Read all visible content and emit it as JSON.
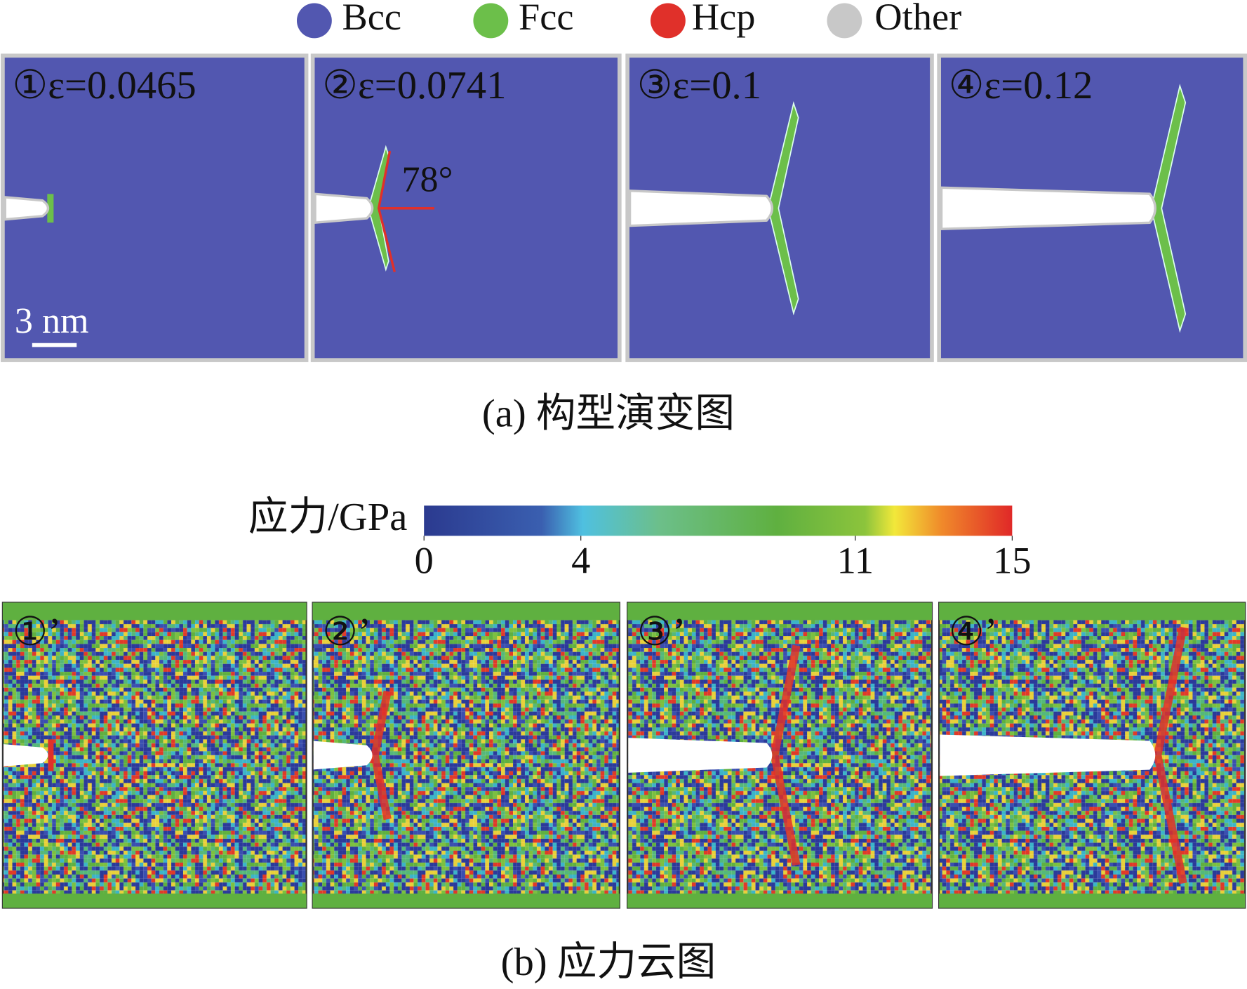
{
  "legend": [
    {
      "label": "Bcc",
      "color": "#5257b0"
    },
    {
      "label": "Fcc",
      "color": "#6cbf4a"
    },
    {
      "label": "Hcp",
      "color": "#e0302a"
    },
    {
      "label": "Other",
      "color": "#c8c8c8"
    }
  ],
  "panels_a": [
    "①ε=0.0465",
    "②ε=0.0741",
    "③ε=0.1",
    "④ε=0.12"
  ],
  "angle_label": "78°",
  "scale_bar": "3 nm",
  "caption_a": "(a) 构型演变图",
  "colorbar": {
    "title": "应力/GPa",
    "range": [
      0,
      15
    ],
    "ticks": [
      0,
      4,
      11,
      15
    ]
  },
  "panels_b": [
    "①’",
    "②’",
    "③’",
    "④’"
  ],
  "caption_b": "(b) 应力云图"
}
